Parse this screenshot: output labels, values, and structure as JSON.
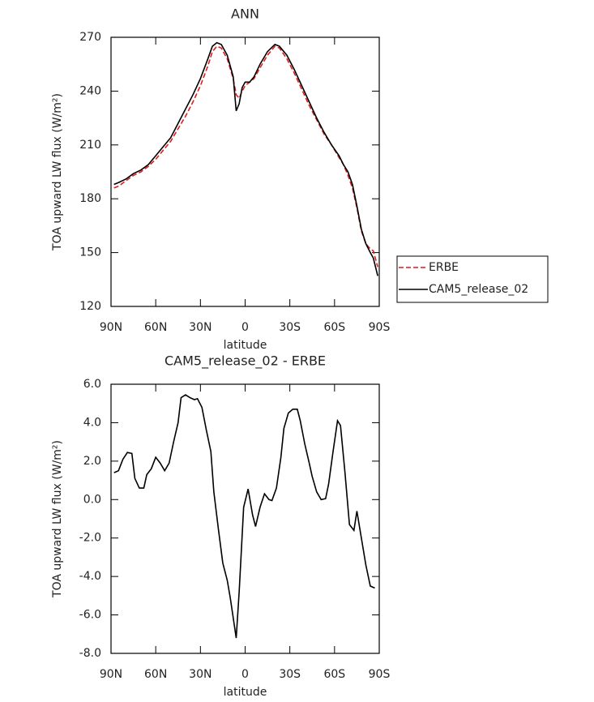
{
  "chart_data": [
    {
      "type": "line",
      "title": "ANN",
      "xlabel": "latitude",
      "ylabel": "TOA upward LW flux (W/m²)",
      "x": [
        88,
        85,
        80,
        75,
        70,
        65,
        60,
        55,
        50,
        45,
        40,
        35,
        30,
        25,
        22,
        19,
        16,
        12,
        8,
        6,
        4,
        2,
        0,
        -3,
        -6,
        -10,
        -15,
        -20,
        -23,
        -28,
        -33,
        -38,
        -43,
        -48,
        -53,
        -58,
        -63,
        -66,
        -69,
        -72,
        -75,
        -78,
        -81,
        -84,
        -86,
        -89
      ],
      "series": [
        {
          "name": "ERBE",
          "color": "#e41a1c",
          "style": "dashed",
          "values": [
            186,
            187,
            190,
            193,
            195,
            198,
            202,
            207,
            212,
            219,
            226,
            234,
            243,
            254,
            262,
            265,
            264,
            258,
            247,
            238,
            236,
            240,
            243,
            245,
            247,
            253,
            260,
            265,
            264,
            258,
            250,
            241,
            232,
            224,
            216,
            210,
            203,
            199,
            193,
            186,
            175,
            162,
            155,
            152,
            151,
            142
          ]
        },
        {
          "name": "CAM5_release_02",
          "color": "#000000",
          "style": "solid",
          "values": [
            188,
            189,
            191,
            194,
            196,
            199,
            204,
            209,
            214,
            222,
            230,
            238,
            247,
            258,
            265,
            267,
            266,
            260,
            248,
            229,
            233,
            242,
            245,
            245,
            248,
            255,
            262,
            266,
            265,
            260,
            252,
            243,
            234,
            225,
            217,
            210,
            204,
            199,
            195,
            188,
            176,
            163,
            155,
            150,
            147,
            137
          ]
        }
      ],
      "xlim": [
        90,
        -90
      ],
      "xticks": [
        {
          "value": 90,
          "label": "90N"
        },
        {
          "value": 60,
          "label": "60N"
        },
        {
          "value": 30,
          "label": "30N"
        },
        0,
        {
          "value": -30,
          "label": "30S"
        },
        {
          "value": -60,
          "label": "60S"
        },
        {
          "value": -90,
          "label": "90S"
        }
      ],
      "ylim": [
        120,
        270
      ],
      "yticks": [
        120,
        150,
        180,
        210,
        240,
        270
      ],
      "legend": "right"
    },
    {
      "type": "line",
      "title": "CAM5_release_02 - ERBE",
      "xlabel": "latitude",
      "ylabel": "TOA upward LW flux (W/m²)",
      "x": [
        88,
        85,
        82,
        79,
        76,
        74,
        71,
        68,
        66,
        63,
        60,
        57,
        54,
        51,
        48,
        45,
        43,
        40,
        37,
        34,
        32,
        29,
        26,
        23,
        21,
        18,
        15,
        12,
        10,
        6,
        4,
        1,
        -2,
        -5,
        -7,
        -10,
        -13,
        -16,
        -18,
        -21,
        -24,
        -26,
        -29,
        -32,
        -35,
        -37,
        -40,
        -43,
        -45,
        -48,
        -51,
        -54,
        -56,
        -59,
        -62,
        -64,
        -67,
        -70,
        -73,
        -75,
        -78,
        -81,
        -84,
        -87
      ],
      "series": [
        {
          "color": "#000000",
          "style": "solid",
          "values": [
            1.4,
            1.5,
            2.1,
            2.45,
            2.4,
            1.1,
            0.6,
            0.6,
            1.3,
            1.6,
            2.2,
            1.9,
            1.5,
            1.9,
            3.0,
            4.0,
            5.3,
            5.45,
            5.3,
            5.2,
            5.25,
            4.8,
            3.6,
            2.5,
            0.4,
            -1.5,
            -3.3,
            -4.2,
            -5.1,
            -7.2,
            -4.8,
            -0.4,
            0.55,
            -0.8,
            -1.4,
            -0.4,
            0.3,
            0,
            -0.05,
            0.6,
            2.2,
            3.7,
            4.5,
            4.7,
            4.7,
            4.1,
            2.9,
            1.9,
            1.2,
            0.4,
            0,
            0.05,
            0.8,
            2.5,
            4.1,
            3.85,
            1.4,
            -1.3,
            -1.6,
            -0.6,
            -2.0,
            -3.4,
            -4.5,
            -4.6
          ]
        }
      ],
      "xlim": [
        90,
        -90
      ],
      "xticks": [
        {
          "value": 90,
          "label": "90N"
        },
        {
          "value": 60,
          "label": "60N"
        },
        {
          "value": 30,
          "label": "30N"
        },
        0,
        {
          "value": -30,
          "label": "30S"
        },
        {
          "value": -60,
          "label": "60S"
        },
        {
          "value": -90,
          "label": "90S"
        }
      ],
      "ylim": [
        -8,
        6
      ],
      "yticks": [
        {
          "value": -8,
          "label": "-8.0"
        },
        {
          "value": -6,
          "label": "-6.0"
        },
        {
          "value": -4,
          "label": "-4.0"
        },
        {
          "value": -2,
          "label": "-2.0"
        },
        {
          "value": 0,
          "label": "0.0"
        },
        {
          "value": 2,
          "label": "2.0"
        },
        {
          "value": 4,
          "label": "4.0"
        },
        {
          "value": 6,
          "label": "6.0"
        }
      ]
    }
  ]
}
